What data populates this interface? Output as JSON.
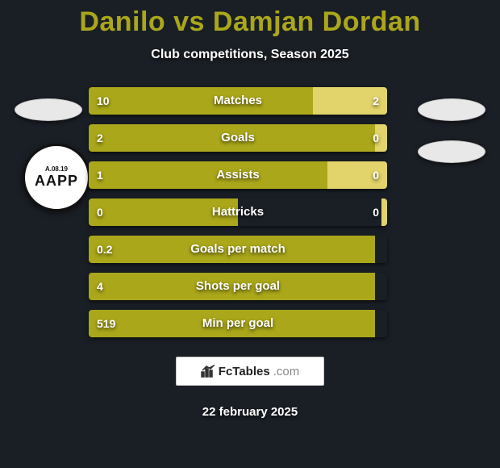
{
  "title": "Danilo vs Damjan Dordan",
  "subtitle": "Club competitions, Season 2025",
  "date": "22 february 2025",
  "watermark": {
    "site": "FcTables",
    "dotcom": ".com"
  },
  "club_badge": {
    "top_text": "A.08.19",
    "main_text": "AAPP"
  },
  "colors": {
    "left_bar": "#aaa71a",
    "right_bar": "#e2d36a",
    "bg": "#1a1f26"
  },
  "stats": [
    {
      "label": "Matches",
      "left_val": "10",
      "right_val": "2",
      "left_pct": 75,
      "right_pct": 25
    },
    {
      "label": "Goals",
      "left_val": "2",
      "right_val": "0",
      "left_pct": 96,
      "right_pct": 4
    },
    {
      "label": "Assists",
      "left_val": "1",
      "right_val": "0",
      "left_pct": 80,
      "right_pct": 20
    },
    {
      "label": "Hattricks",
      "left_val": "0",
      "right_val": "0",
      "left_pct": 50,
      "right_pct": 2
    },
    {
      "label": "Goals per match",
      "left_val": "0.2",
      "right_val": "",
      "left_pct": 96,
      "right_pct": 0
    },
    {
      "label": "Shots per goal",
      "left_val": "4",
      "right_val": "",
      "left_pct": 96,
      "right_pct": 0
    },
    {
      "label": "Min per goal",
      "left_val": "519",
      "right_val": "",
      "left_pct": 96,
      "right_pct": 0
    }
  ]
}
